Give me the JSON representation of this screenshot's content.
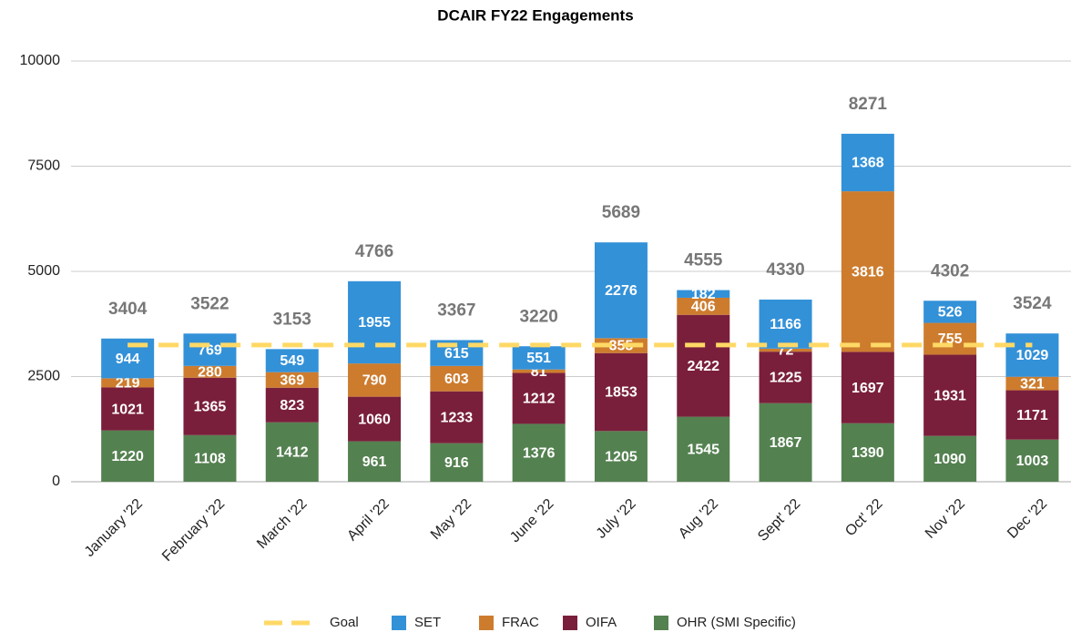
{
  "chart_data": {
    "type": "stacked_bar",
    "title": "DCAIR FY22 Engagements",
    "categories": [
      "January '22",
      "February '22",
      "March '22",
      "April '22",
      "May '22",
      "June '22",
      "July '22",
      "Aug '22",
      "Sept' 22",
      "Oct' 22",
      "Nov '22",
      "Dec '22"
    ],
    "series": [
      {
        "name": "OHR (SMI Specific)",
        "color": "#548150",
        "values": [
          1220,
          1108,
          1412,
          961,
          916,
          1376,
          1205,
          1545,
          1867,
          1390,
          1090,
          1003
        ]
      },
      {
        "name": "OIFA",
        "color": "#7a1f3b",
        "values": [
          1021,
          1365,
          823,
          1060,
          1233,
          1212,
          1853,
          2422,
          1225,
          1697,
          1931,
          1171
        ]
      },
      {
        "name": "FRAC",
        "color": "#cd7c2e",
        "values": [
          219,
          280,
          369,
          790,
          603,
          81,
          355,
          406,
          72,
          3816,
          755,
          321
        ]
      },
      {
        "name": "SET",
        "color": "#3391d8",
        "values": [
          944,
          769,
          549,
          1955,
          615,
          551,
          2276,
          182,
          1166,
          1368,
          526,
          1029
        ]
      }
    ],
    "totals": [
      3404,
      3522,
      3153,
      4766,
      3367,
      3220,
      5689,
      4555,
      4330,
      8271,
      4302,
      3524
    ],
    "goal": {
      "name": "Goal",
      "color": "#ffd966",
      "value": 3250
    },
    "ylim": [
      0,
      10000
    ],
    "yticks": [
      0,
      2500,
      5000,
      7500,
      10000
    ],
    "grid": true
  }
}
